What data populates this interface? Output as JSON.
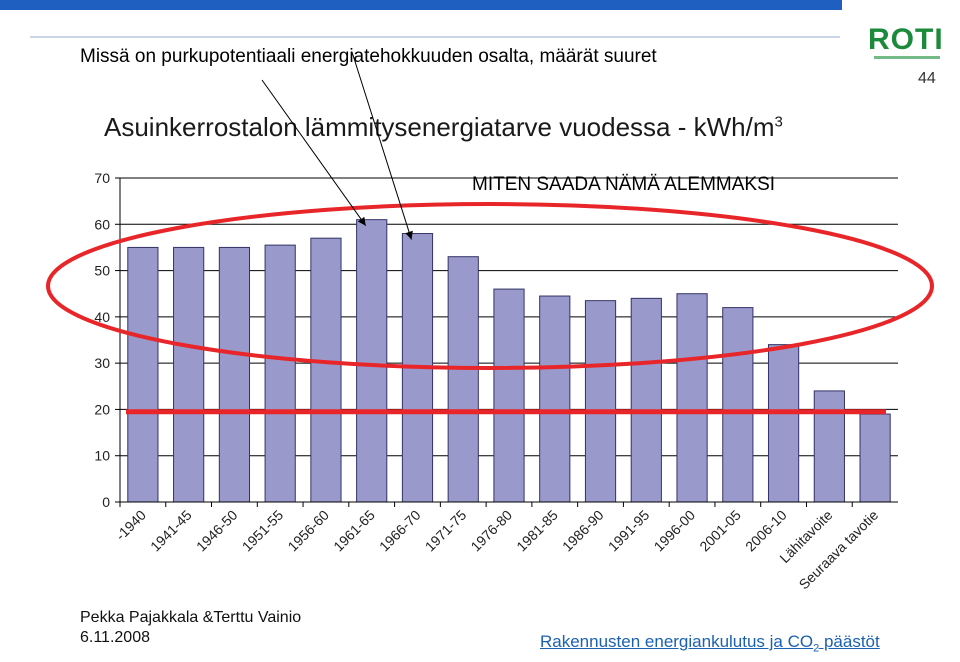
{
  "slide": {
    "title": "Missä on purkupotentiaali energiatehokkuuden osalta, määrät suuret",
    "page_number": "44",
    "logo_text": "ROTI",
    "annotation": "MITEN SAADA NÄMÄ ALEMMAKSI",
    "author_line1": "Pekka Pajakkala &Terttu Vainio",
    "author_line2": "6.11.2008",
    "footer_link_main": "Rakennusten energiankulutus ja CO",
    "footer_link_sub": "2",
    "footer_link_tail": " päästöt"
  },
  "colors": {
    "top_bar": "#1f5fbf",
    "bar_fill": "#9999cc",
    "bar_stroke": "#333366",
    "target_line": "#e8262a",
    "ellipse": "#e8262a",
    "logo": "#1b8a3a",
    "link": "#1a62b0"
  },
  "chart_data": {
    "type": "bar",
    "title": "Asuinkerrostalon lämmitysenergiatarve vuodessa - kWh/m",
    "title_superscript": "3",
    "categories": [
      "-1940",
      "1941-45",
      "1946-50",
      "1951-55",
      "1956-60",
      "1961-65",
      "1966-70",
      "1971-75",
      "1976-80",
      "1981-85",
      "1986-90",
      "1991-95",
      "1996-00",
      "2001-05",
      "2006-10",
      "Lähitavoite",
      "Seuraava tavotie"
    ],
    "values": [
      55,
      55,
      55,
      55.5,
      57,
      61,
      58,
      53,
      46,
      44.5,
      43.5,
      44,
      45,
      42,
      34,
      24,
      19
    ],
    "ylim": [
      0,
      70
    ],
    "yticks": [
      0,
      10,
      20,
      30,
      40,
      50,
      60,
      70
    ],
    "reference_line_y": 19.5,
    "grid": true,
    "xlabel": "",
    "ylabel": ""
  }
}
